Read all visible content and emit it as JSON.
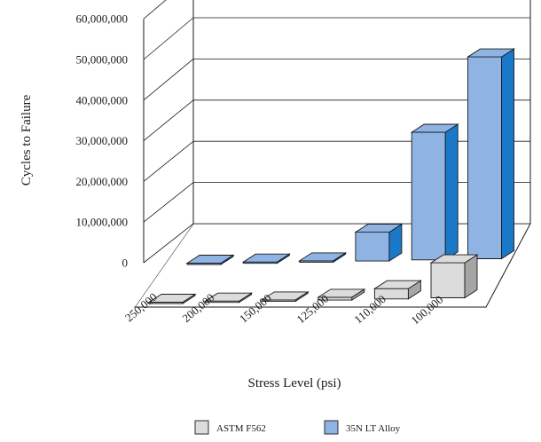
{
  "chart_data": {
    "type": "bar",
    "view": "3d",
    "xlabel": "Stress Level (psi)",
    "ylabel": "Cycles to Failure",
    "categories": [
      "250,000",
      "200,000",
      "150,000",
      "125,000",
      "110,000",
      "100,000"
    ],
    "yticks": [
      "0",
      "10,000,000",
      "20,000,000",
      "30,000,000",
      "40,000,000",
      "50,000,000",
      "60,000,000"
    ],
    "ylim": [
      0,
      60000000
    ],
    "grid": true,
    "legend_position": "bottom",
    "series": [
      {
        "name": "ASTM F562",
        "color": "#dcdcdc",
        "values": [
          100000,
          100000,
          100000,
          700000,
          2500000,
          8500000
        ]
      },
      {
        "name": "35N LT Alloy",
        "color": "#8fb4e3",
        "values": [
          300000,
          300000,
          300000,
          7000000,
          31000000,
          49000000
        ]
      }
    ]
  }
}
